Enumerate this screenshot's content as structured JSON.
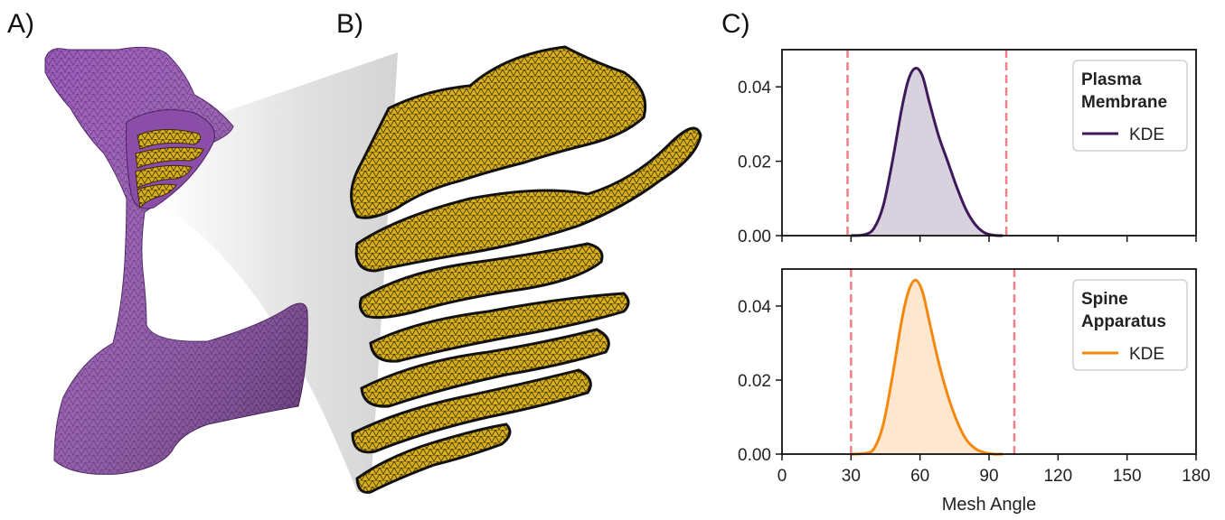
{
  "panels": {
    "a": "A)",
    "b": "B)",
    "c": "C)"
  },
  "colors": {
    "membrane": "#9b5ab8",
    "membrane_dark": "#5d2c78",
    "apparatus": "#d8b21c",
    "apparatus_dark": "#7a5c06",
    "kde_top": "#3e1a5b",
    "kde_bottom": "#f5870c",
    "bounds": "#f07f87"
  },
  "chart_data": [
    {
      "type": "area",
      "legend_title": "Plasma\nMembrane",
      "series": [
        {
          "name": "KDE",
          "color": "#3e1a5b"
        }
      ],
      "x": [
        30,
        36,
        40,
        44,
        48,
        52,
        55,
        58,
        61,
        64,
        68,
        72,
        76,
        80,
        84,
        88,
        92,
        96
      ],
      "y": [
        0.0,
        0.0003,
        0.002,
        0.008,
        0.02,
        0.034,
        0.042,
        0.045,
        0.043,
        0.036,
        0.027,
        0.02,
        0.013,
        0.007,
        0.003,
        0.0008,
        0.0001,
        0.0
      ],
      "vlines": [
        28.5,
        97.5
      ],
      "xlim": [
        0,
        180
      ],
      "ylim": [
        0,
        0.05
      ],
      "yticks": [
        "0.00",
        "0.02",
        "0.04"
      ],
      "ytick_values": [
        0,
        0.02,
        0.04
      ],
      "legend_placement": "top-right"
    },
    {
      "type": "area",
      "legend_title": "Spine\nApparatus",
      "series": [
        {
          "name": "KDE",
          "color": "#f5870c"
        }
      ],
      "x": [
        30,
        36,
        40,
        44,
        48,
        52,
        55,
        58,
        61,
        64,
        68,
        72,
        76,
        80,
        84,
        88,
        92,
        96
      ],
      "y": [
        0.0,
        0.0002,
        0.0015,
        0.008,
        0.021,
        0.036,
        0.044,
        0.047,
        0.044,
        0.036,
        0.025,
        0.016,
        0.009,
        0.004,
        0.0015,
        0.0004,
        0.0,
        0.0
      ],
      "vlines": [
        30,
        101
      ],
      "xlim": [
        0,
        180
      ],
      "ylim": [
        0,
        0.05
      ],
      "yticks": [
        "0.00",
        "0.02",
        "0.04"
      ],
      "ytick_values": [
        0,
        0.02,
        0.04
      ],
      "xticks": [
        "0",
        "30",
        "60",
        "90",
        "120",
        "150",
        "180"
      ],
      "xtick_values": [
        0,
        30,
        60,
        90,
        120,
        150,
        180
      ],
      "xlabel": "Mesh Angle",
      "legend_placement": "top-right"
    }
  ]
}
